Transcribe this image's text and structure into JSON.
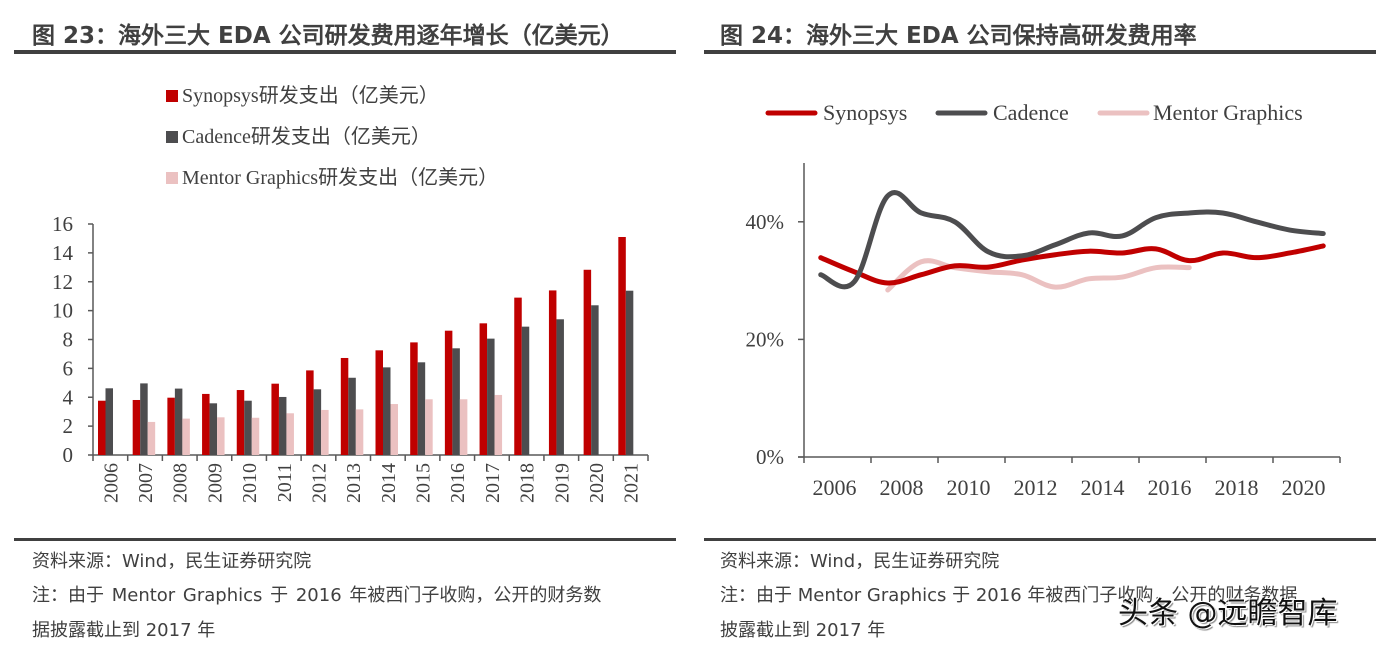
{
  "left_panel": {
    "title": "图 23：海外三大 EDA 公司研发费用逐年增长（亿美元）",
    "source": "资料来源：Wind，民生证券研究院",
    "note_line1": "注：由于 Mentor  Graphics 于 2016 年被西门子收购，公开的财务数",
    "note_line2": "据披露截止到 2017 年"
  },
  "right_panel": {
    "title": "图 24：海外三大 EDA 公司保持高研发费用率",
    "source": "资料来源：Wind，民生证券研究院",
    "note_line1": "注：由于 Mentor Graphics 于 2016 年被西门子收购，公开的财务数据",
    "note_line2": "披露截止到 2017 年"
  },
  "watermark": "头条 @远瞻智库",
  "colors": {
    "synopsys": "#C00000",
    "cadence": "#4D4D4F",
    "mentor": "#EBC1C1",
    "axis": "#595959",
    "text": "#404040"
  },
  "chart_data": [
    {
      "type": "bar",
      "title": "图 23：海外三大 EDA 公司研发费用逐年增长（亿美元）",
      "xlabel": "",
      "ylabel": "",
      "ylim": [
        0,
        16
      ],
      "yticks": [
        "0",
        "2",
        "4",
        "6",
        "8",
        "10",
        "12",
        "14",
        "16"
      ],
      "legend_position": "top",
      "grid": false,
      "categories": [
        "2006",
        "2007",
        "2008",
        "2009",
        "2010",
        "2011",
        "2012",
        "2013",
        "2014",
        "2015",
        "2016",
        "2017",
        "2018",
        "2019",
        "2020",
        "2021"
      ],
      "series": [
        {
          "name": "Synopsys研发支出（亿美元）",
          "key": "synopsys",
          "values": [
            3.76,
            3.81,
            3.97,
            4.23,
            4.5,
            4.94,
            5.86,
            6.72,
            7.25,
            7.8,
            8.61,
            9.12,
            10.9,
            11.4,
            12.83,
            15.1
          ]
        },
        {
          "name": "Cadence研发支出（亿美元）",
          "key": "cadence",
          "values": [
            4.62,
            4.96,
            4.6,
            3.58,
            3.76,
            4.02,
            4.55,
            5.35,
            6.07,
            6.42,
            7.39,
            8.06,
            8.89,
            9.4,
            10.37,
            11.38
          ]
        },
        {
          "name": "Mentor Graphics研发支出（亿美元）",
          "key": "mentor",
          "values": [
            null,
            2.29,
            2.52,
            2.61,
            2.58,
            2.89,
            3.12,
            3.16,
            3.53,
            3.86,
            3.86,
            4.16,
            null,
            null,
            null,
            null
          ]
        }
      ]
    },
    {
      "type": "line",
      "title": "图 24：海外三大 EDA 公司保持高研发费用率",
      "xlabel": "",
      "ylabel": "",
      "ylim": [
        0,
        50
      ],
      "yticks": [
        {
          "v": 0,
          "label": "0%"
        },
        {
          "v": 20,
          "label": "20%"
        },
        {
          "v": 40,
          "label": "40%"
        }
      ],
      "xtick_labels": [
        "2006",
        "2008",
        "2010",
        "2012",
        "2014",
        "2016",
        "2018",
        "2020"
      ],
      "legend_position": "top",
      "grid": false,
      "x": [
        "2006",
        "2007",
        "2008",
        "2009",
        "2010",
        "2011",
        "2012",
        "2013",
        "2014",
        "2015",
        "2016",
        "2017",
        "2018",
        "2019",
        "2020",
        "2021"
      ],
      "series": [
        {
          "name": "Synopsys",
          "key": "synopsys",
          "values": [
            33.9,
            31.5,
            29.6,
            31.0,
            32.5,
            32.3,
            33.5,
            34.4,
            35.0,
            34.7,
            35.4,
            33.4,
            34.7,
            33.9,
            34.7,
            35.9
          ]
        },
        {
          "name": "Cadence",
          "key": "cadence",
          "values": [
            31.0,
            29.8,
            44.4,
            41.5,
            40.0,
            34.9,
            34.2,
            36.1,
            38.1,
            37.6,
            40.7,
            41.5,
            41.5,
            40.0,
            38.6,
            38.0
          ]
        },
        {
          "name": "Mentor Graphics",
          "key": "mentor",
          "values": [
            null,
            null,
            28.4,
            33.2,
            32.2,
            31.5,
            31.0,
            28.9,
            30.3,
            30.6,
            32.2,
            32.2,
            null,
            null,
            null,
            null
          ]
        }
      ]
    }
  ]
}
